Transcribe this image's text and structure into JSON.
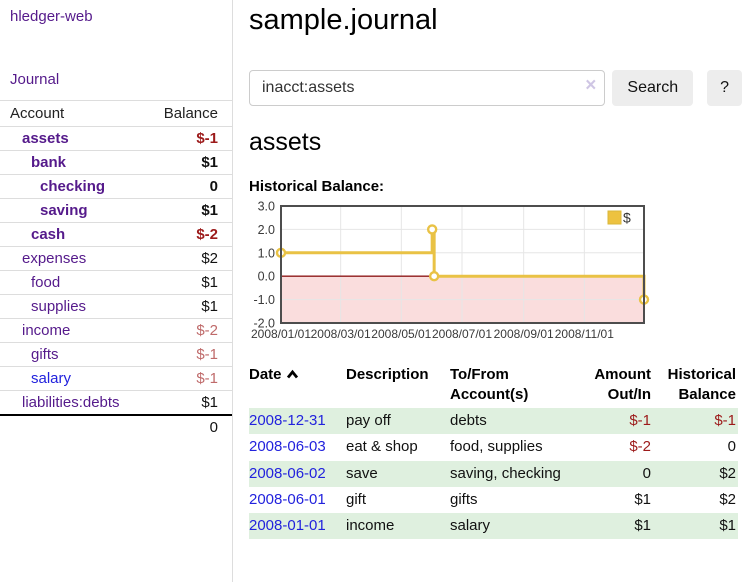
{
  "sidebar": {
    "brand": "hledger-web",
    "nav_journal": "Journal",
    "accounts_table": {
      "headers": {
        "account": "Account",
        "balance": "Balance"
      },
      "rows": [
        {
          "name": "assets",
          "indent": 1,
          "bold": true,
          "link": "purple",
          "balance": "$-1",
          "style": "neg-strong"
        },
        {
          "name": "bank",
          "indent": 2,
          "bold": true,
          "link": "purple",
          "balance": "$1",
          "style": "pos-strong"
        },
        {
          "name": "checking",
          "indent": 3,
          "bold": true,
          "link": "purple",
          "balance": "0",
          "style": "pos-strong"
        },
        {
          "name": "saving",
          "indent": 3,
          "bold": true,
          "link": "purple",
          "balance": "$1",
          "style": "pos-strong"
        },
        {
          "name": "cash",
          "indent": 2,
          "bold": true,
          "link": "purple",
          "balance": "$-2",
          "style": "neg-strong"
        },
        {
          "name": "expenses",
          "indent": 1,
          "bold": false,
          "link": "purple",
          "balance": "$2",
          "style": "pos"
        },
        {
          "name": "food",
          "indent": 2,
          "bold": false,
          "link": "purple",
          "balance": "$1",
          "style": "pos"
        },
        {
          "name": "supplies",
          "indent": 2,
          "bold": false,
          "link": "purple",
          "balance": "$1",
          "style": "pos"
        },
        {
          "name": "income",
          "indent": 1,
          "bold": false,
          "link": "purple",
          "balance": "$-2",
          "style": "neg-light"
        },
        {
          "name": "gifts",
          "indent": 2,
          "bold": false,
          "link": "purple",
          "balance": "$-1",
          "style": "neg-light"
        },
        {
          "name": "salary",
          "indent": 2,
          "bold": false,
          "link": "blue",
          "balance": "$-1",
          "style": "neg-light"
        },
        {
          "name": "liabilities:debts",
          "indent": 1,
          "bold": false,
          "link": "purple",
          "balance": "$1",
          "style": "pos"
        }
      ],
      "total": "0"
    }
  },
  "main": {
    "title": "sample.journal",
    "search": {
      "value": "inacct:assets",
      "clear_icon": "×",
      "button": "Search",
      "help": "?"
    },
    "account_heading": "assets",
    "chart_label": "Historical Balance:"
  },
  "chart_data": {
    "type": "line",
    "step": true,
    "title": "Historical Balance:",
    "series": [
      {
        "name": "$",
        "color": "#edc240",
        "points": [
          {
            "date": "2008-01-01",
            "day": 0,
            "value": 1
          },
          {
            "date": "2008-06-01",
            "day": 152,
            "value": 2
          },
          {
            "date": "2008-06-03",
            "day": 154,
            "value": 0
          },
          {
            "date": "2008-12-31",
            "day": 365,
            "value": -1
          }
        ]
      }
    ],
    "x_domain_days": [
      0,
      365
    ],
    "x_ticks": [
      {
        "day": 0,
        "label": "2008/01/01"
      },
      {
        "day": 60,
        "label": "2008/03/01"
      },
      {
        "day": 121,
        "label": "2008/05/01"
      },
      {
        "day": 182,
        "label": "2008/07/01"
      },
      {
        "day": 244,
        "label": "2008/09/01"
      },
      {
        "day": 305,
        "label": "2008/11/01"
      }
    ],
    "y_ticks": [
      3.0,
      2.0,
      1.0,
      0.0,
      -1.0,
      -2.0
    ],
    "ylim": [
      -2,
      3
    ],
    "legend": {
      "label": "$",
      "position": "top-right"
    },
    "colors": {
      "line": "#e9c245",
      "marker_fill": "#ffffff",
      "negative_region": "#fadddd",
      "zero_line": "#8f1a1a",
      "grid": "#e6e6e6",
      "border": "#4d4d4d",
      "tick_text": "#3a3a3a",
      "legend_text": "#333333"
    }
  },
  "transactions": {
    "headers": {
      "date": "Date",
      "description": "Description",
      "tofrom": "To/From Account(s)",
      "amount": "Amount Out/In",
      "balance": "Historical Balance"
    },
    "rows": [
      {
        "date": "2008-12-31",
        "description": "pay off",
        "accounts": "debts",
        "amount": "$-1",
        "amount_neg": true,
        "balance": "$-1",
        "balance_neg": true,
        "shaded": true
      },
      {
        "date": "2008-06-03",
        "description": "eat & shop",
        "accounts": "food, supplies",
        "amount": "$-2",
        "amount_neg": true,
        "balance": "0",
        "balance_neg": false,
        "shaded": false
      },
      {
        "date": "2008-06-02",
        "description": "save",
        "accounts": "saving, checking",
        "amount": "0",
        "amount_neg": false,
        "balance": "$2",
        "balance_neg": false,
        "shaded": true
      },
      {
        "date": "2008-06-01",
        "description": "gift",
        "accounts": "gifts",
        "amount": "$1",
        "amount_neg": false,
        "balance": "$2",
        "balance_neg": false,
        "shaded": false
      },
      {
        "date": "2008-01-01",
        "description": "income",
        "accounts": "salary",
        "amount": "$1",
        "amount_neg": false,
        "balance": "$1",
        "balance_neg": false,
        "shaded": true
      }
    ]
  }
}
